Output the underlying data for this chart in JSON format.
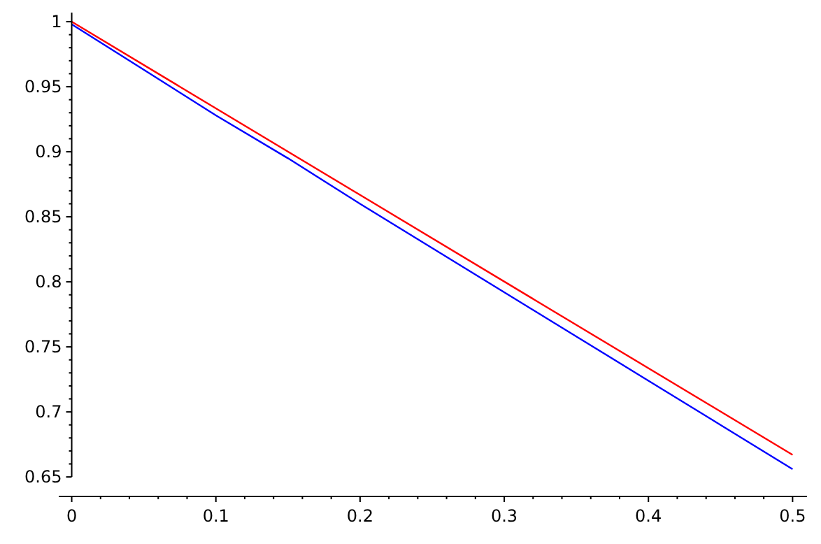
{
  "chart_data": {
    "type": "line",
    "x": [
      0,
      0.5
    ],
    "series": [
      {
        "color": "#ff0000",
        "values": [
          1,
          0.667
        ]
      },
      {
        "color": "#0000ff",
        "x": [
          0,
          0.05,
          0.1,
          0.15,
          0.2,
          0.25,
          0.3,
          0.35,
          0.4,
          0.45,
          0.5
        ],
        "values": [
          0.998,
          0.963,
          0.928,
          0.895,
          0.86,
          0.826,
          0.792,
          0.758,
          0.724,
          0.69,
          0.656
        ]
      }
    ],
    "xlim": [
      -0.009,
      0.51
    ],
    "ylim": [
      0.635,
      1.007
    ],
    "xticks": [
      0,
      {
        "value": 0.02,
        "label": null
      },
      {
        "value": 0.04,
        "label": null
      },
      {
        "value": 0.06,
        "label": null
      },
      {
        "value": 0.08,
        "label": null
      },
      0.1,
      {
        "value": 0.12,
        "label": null
      },
      {
        "value": 0.14,
        "label": null
      },
      {
        "value": 0.16,
        "label": null
      },
      {
        "value": 0.18,
        "label": null
      },
      0.2,
      {
        "value": 0.22,
        "label": null
      },
      {
        "value": 0.24,
        "label": null
      },
      {
        "value": 0.26,
        "label": null
      },
      {
        "value": 0.28,
        "label": null
      },
      0.3,
      {
        "value": 0.32,
        "label": null
      },
      {
        "value": 0.34,
        "label": null
      },
      {
        "value": 0.36,
        "label": null
      },
      {
        "value": 0.38,
        "label": null
      },
      0.4,
      {
        "value": 0.42,
        "label": null
      },
      {
        "value": 0.44,
        "label": null
      },
      {
        "value": 0.46,
        "label": null
      },
      {
        "value": 0.48,
        "label": null
      },
      0.5
    ],
    "yticks": [
      0.65,
      {
        "value": 0.66,
        "label": null
      },
      {
        "value": 0.67,
        "label": null
      },
      {
        "value": 0.68,
        "label": null
      },
      {
        "value": 0.69,
        "label": null
      },
      0.7,
      {
        "value": 0.71,
        "label": null
      },
      {
        "value": 0.72,
        "label": null
      },
      {
        "value": 0.73,
        "label": null
      },
      {
        "value": 0.74,
        "label": null
      },
      0.75,
      {
        "value": 0.76,
        "label": null
      },
      {
        "value": 0.77,
        "label": null
      },
      {
        "value": 0.78,
        "label": null
      },
      {
        "value": 0.79,
        "label": null
      },
      0.8,
      {
        "value": 0.81,
        "label": null
      },
      {
        "value": 0.82,
        "label": null
      },
      {
        "value": 0.83,
        "label": null
      },
      {
        "value": 0.84,
        "label": null
      },
      0.85,
      {
        "value": 0.86,
        "label": null
      },
      {
        "value": 0.87,
        "label": null
      },
      {
        "value": 0.88,
        "label": null
      },
      {
        "value": 0.89,
        "label": null
      },
      0.9,
      {
        "value": 0.91,
        "label": null
      },
      {
        "value": 0.92,
        "label": null
      },
      {
        "value": 0.93,
        "label": null
      },
      {
        "value": 0.94,
        "label": null
      },
      0.95,
      {
        "value": 0.96,
        "label": null
      },
      {
        "value": 0.97,
        "label": null
      },
      {
        "value": 0.98,
        "label": null
      },
      {
        "value": 0.99,
        "label": null
      },
      1
    ],
    "grid": false
  }
}
